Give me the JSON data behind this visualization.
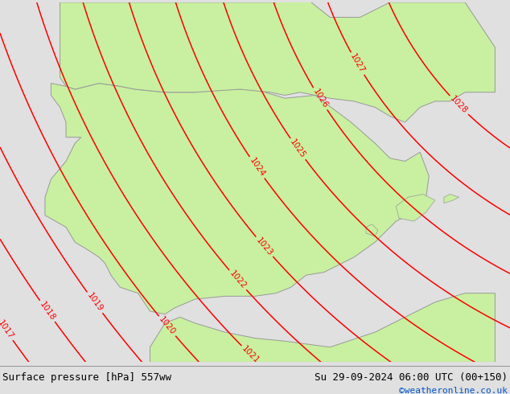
{
  "title_left": "Surface pressure [hPa] 557ww",
  "title_right": "Su 29-09-2024 06:00 UTC (00+150)",
  "credit": "©weatheronline.co.uk",
  "bg_color": "#e0e0e0",
  "land_color": "#c8f0a0",
  "sea_color": "#d8d8d8",
  "contour_color": "red",
  "coast_color": "#999999",
  "text_color_left": "#000000",
  "text_color_right": "#000000",
  "credit_color": "#0055cc",
  "figsize": [
    6.34,
    4.9
  ],
  "dpi": 100,
  "isobar_levels": [
    1017,
    1018,
    1019,
    1020,
    1021,
    1022,
    1023,
    1024,
    1025,
    1026,
    1027,
    1028
  ],
  "lon_min": -11.0,
  "lon_max": 6.0,
  "lat_min": 34.5,
  "lat_max": 46.5
}
